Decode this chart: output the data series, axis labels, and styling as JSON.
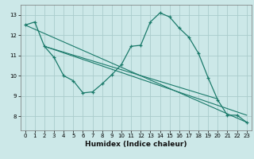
{
  "title": "",
  "xlabel": "Humidex (Indice chaleur)",
  "background_color": "#cce8e8",
  "grid_color": "#aacccc",
  "line_color": "#1a7a6a",
  "xlim": [
    -0.5,
    23.5
  ],
  "ylim": [
    7.3,
    13.5
  ],
  "yticks": [
    8,
    9,
    10,
    11,
    12,
    13
  ],
  "xticks": [
    0,
    1,
    2,
    3,
    4,
    5,
    6,
    7,
    8,
    9,
    10,
    11,
    12,
    13,
    14,
    15,
    16,
    17,
    18,
    19,
    20,
    21,
    22,
    23
  ],
  "main_x": [
    0,
    1,
    2,
    3,
    4,
    5,
    6,
    7,
    8,
    9,
    10,
    11,
    12,
    13,
    14,
    15,
    16,
    17,
    18,
    19,
    20,
    21,
    22,
    23
  ],
  "main_y": [
    12.5,
    12.65,
    11.45,
    10.9,
    10.0,
    9.75,
    9.15,
    9.2,
    9.6,
    10.05,
    10.55,
    11.45,
    11.5,
    12.65,
    13.1,
    12.9,
    12.35,
    11.9,
    11.1,
    9.9,
    8.8,
    8.05,
    8.05,
    7.7
  ],
  "line1_x": [
    0,
    23
  ],
  "line1_y": [
    12.5,
    7.7
  ],
  "line2_x": [
    2,
    23
  ],
  "line2_y": [
    11.45,
    8.05
  ],
  "line3_x": [
    2,
    20
  ],
  "line3_y": [
    11.45,
    8.85
  ]
}
